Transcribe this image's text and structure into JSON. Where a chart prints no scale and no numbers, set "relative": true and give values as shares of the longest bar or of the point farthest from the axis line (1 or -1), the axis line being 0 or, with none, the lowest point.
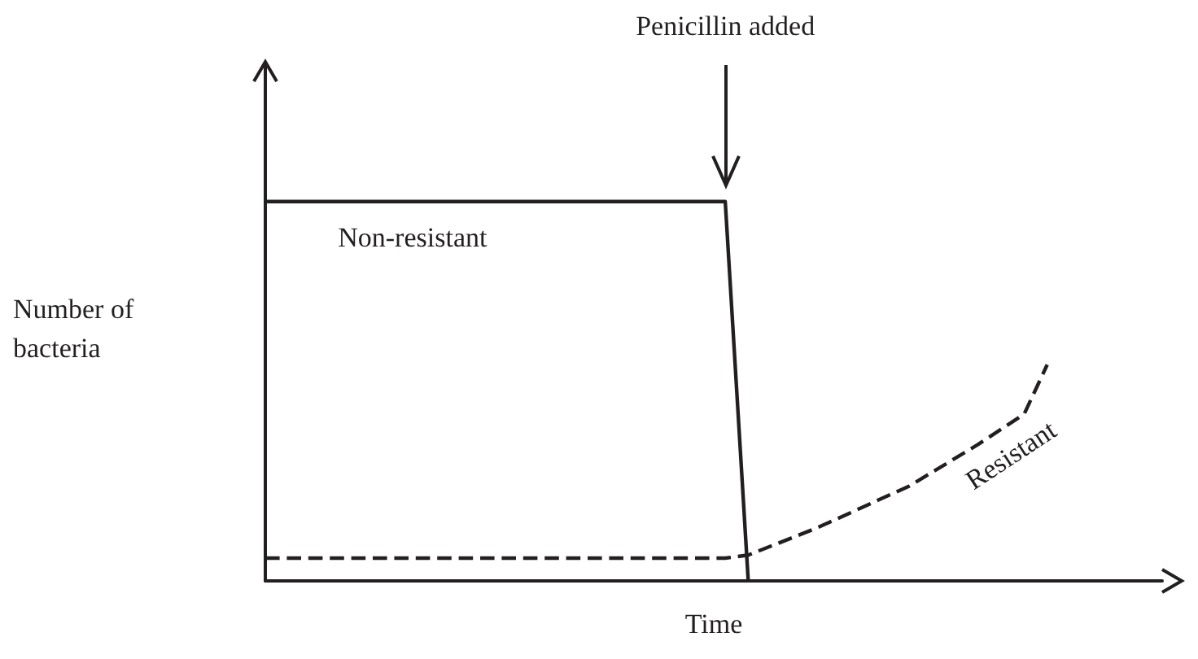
{
  "chart_data": {
    "type": "line",
    "relative": true,
    "xlabel": "Time",
    "ylabel": "Number of\nbacteria",
    "grid": false,
    "legend": false,
    "marker": "none",
    "annotations": [
      "Penicillin added"
    ],
    "categories": [
      null,
      null,
      null,
      null,
      null,
      null,
      null,
      null,
      null,
      null,
      null,
      null,
      null,
      null,
      null,
      null,
      null,
      null,
      null,
      null,
      null,
      null,
      null,
      null,
      null,
      null,
      null,
      null,
      null,
      null,
      null,
      null,
      null,
      null,
      null,
      null,
      null,
      null,
      null,
      null
    ],
    "series": [
      {
        "name": "Non-resistant",
        "color": "#231f20",
        "line_style": "solid",
        "values": [
          1,
          1,
          1,
          1,
          1,
          1,
          1,
          1,
          1,
          1,
          1,
          1,
          1,
          1,
          1,
          1,
          1,
          1,
          1,
          1,
          1,
          0,
          null,
          null,
          null,
          null,
          null,
          null,
          null,
          null,
          null,
          null,
          null,
          null,
          null,
          null,
          null,
          null,
          null,
          null
        ]
      },
      {
        "name": "Resistant",
        "color": "#231f20",
        "line_style": "dashed",
        "values": [
          0.06,
          0.06,
          0.06,
          0.06,
          0.06,
          0.06,
          0.06,
          0.06,
          0.06,
          0.06,
          0.06,
          0.06,
          0.06,
          0.06,
          0.06,
          0.06,
          0.06,
          0.06,
          0.06,
          0.06,
          0.06,
          0.068,
          null,
          null,
          0.14,
          null,
          null,
          null,
          0.25,
          null,
          null,
          0.36,
          null,
          0.44,
          0.57,
          null,
          null,
          null,
          null,
          null
        ]
      }
    ]
  }
}
